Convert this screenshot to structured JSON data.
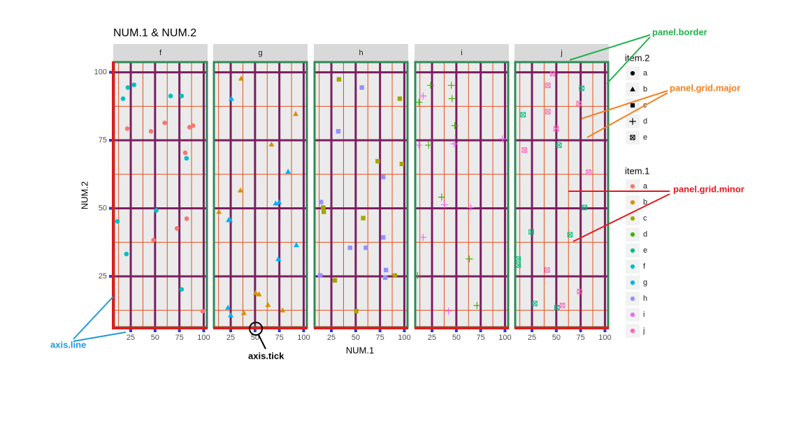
{
  "chart_data": {
    "type": "scatter",
    "title": "NUM.1 & NUM.2",
    "x_label": "NUM.1",
    "y_label": "NUM.2",
    "xlim": [
      7,
      104
    ],
    "ylim": [
      6,
      104
    ],
    "xticks": [
      25,
      50,
      75,
      100
    ],
    "yticks": [
      25,
      50,
      75,
      100
    ],
    "xminor": [
      12.5,
      37.5,
      62.5,
      87.5
    ],
    "yminor": [
      12.5,
      37.5,
      62.5,
      87.5
    ],
    "major_grid_color": "#7b1f5f",
    "minor_grid_color": "#e0501e",
    "border_color": "#2e8b57",
    "axis_line_color": "#e31a1c",
    "axis_tick_color": "#1f3fe0",
    "facets": [
      {
        "name": "f",
        "series": [
          {
            "color": "#F8766D",
            "shape": "circle",
            "x": [
              21.4,
              45.8,
              59.9,
              85.4,
              89,
              81,
              82.5,
              72.5,
              48.4,
              98.9
            ],
            "values": [
              79.3,
              78.3,
              81.4,
              79.8,
              80.4,
              70.4,
              46.2,
              42.6,
              38.3,
              12.2
            ]
          },
          {
            "color": "#00BFC4",
            "shape": "circle",
            "x": [
              17.1,
              22,
              28.4,
              66,
              77.3,
              82.3,
              51.2,
              11.3,
              20.5,
              77.3
            ],
            "values": [
              90.3,
              94.4,
              95.4,
              91.3,
              91.3,
              68.4,
              49.2,
              45.2,
              33.2,
              20.2
            ]
          }
        ]
      },
      {
        "name": "g",
        "series": [
          {
            "color": "#D89000",
            "shape": "triangle",
            "x": [
              35.7,
              91.8,
              66.9,
              35,
              12.9,
              50.6,
              54.1,
              63.3,
              78.3,
              38.5
            ],
            "values": [
              97.7,
              84.7,
              73.5,
              56.6,
              48.7,
              18.9,
              18.4,
              14.5,
              12.5,
              11.5
            ]
          },
          {
            "color": "#00B0F6",
            "shape": "triangle",
            "x": [
              25.7,
              84,
              71.2,
              74.7,
              22.9,
              24.3,
              92.5,
              74,
              22.2,
              25
            ],
            "values": [
              90.3,
              63.5,
              51.8,
              52.3,
              45.7,
              45.7,
              36.5,
              31.4,
              13.5,
              10.7
            ]
          }
        ]
      },
      {
        "name": "h",
        "series": [
          {
            "color": "#A3A500",
            "shape": "square",
            "x": [
              32.8,
              95.3,
              72.6,
              97.4,
              16.5,
              17.2,
              57.7,
              28.6,
              90.3,
              50.6
            ],
            "values": [
              97.4,
              90.3,
              67.3,
              66.3,
              50.3,
              48.7,
              46.4,
              23.5,
              25.3,
              12.2
            ]
          },
          {
            "color": "#9590FF",
            "shape": "square",
            "x": [
              56.3,
              32.1,
              78.3,
              14.3,
              44.2,
              60.5,
              78.3,
              81.1,
              80.4,
              13.6
            ],
            "values": [
              94.4,
              78.3,
              61.5,
              52.3,
              35.5,
              35.5,
              39.3,
              27.3,
              24.5,
              25.3
            ]
          }
        ]
      },
      {
        "name": "i",
        "series": [
          {
            "color": "#39B600",
            "shape": "plus",
            "x": [
              23.6,
              44.9,
              11.5,
              45.6,
              48.4,
              21.4,
              34.9,
              63.3,
              71.2,
              10.1
            ],
            "values": [
              95.2,
              95.2,
              89,
              90.3,
              80.4,
              73.2,
              54.1,
              31.4,
              14.3,
              25.3
            ]
          },
          {
            "color": "#E76BF3",
            "shape": "plus",
            "x": [
              15.8,
              11.5,
              47.7,
              97.4,
              37.8,
              64.8,
              15.8,
              42
            ],
            "values": [
              91.3,
              73.2,
              73.7,
              75.5,
              51.3,
              50.3,
              39.3,
              12.2
            ]
          }
        ]
      },
      {
        "name": "j",
        "series": [
          {
            "color": "#00BF7D",
            "shape": "boxx",
            "x": [
              15.8,
              76.1,
              52.7,
              79,
              24.3,
              64.1,
              10.8,
              10.8,
              27.8,
              50.6
            ],
            "values": [
              84.4,
              94.1,
              73.2,
              50.3,
              41.3,
              40.3,
              31.4,
              29.1,
              15,
              13.5
            ]
          },
          {
            "color": "#FF62BC",
            "shape": "boxx",
            "x": [
              46.3,
              41.3,
              73.3,
              41.3,
              49.9,
              17.2,
              83.2,
              40.6,
              74,
              56.3
            ],
            "values": [
              99.5,
              95.2,
              88.5,
              85.5,
              79.3,
              71.4,
              63.3,
              27.3,
              19.4,
              14.3
            ]
          }
        ]
      }
    ],
    "legends": [
      {
        "title": "item.2",
        "entries": [
          {
            "label": "a",
            "shape": "circle",
            "color": "#000000"
          },
          {
            "label": "b",
            "shape": "triangle",
            "color": "#000000"
          },
          {
            "label": "c",
            "shape": "square",
            "color": "#000000"
          },
          {
            "label": "d",
            "shape": "plus",
            "color": "#000000"
          },
          {
            "label": "e",
            "shape": "boxx",
            "color": "#000000"
          }
        ]
      },
      {
        "title": "item.1",
        "entries": [
          {
            "label": "a",
            "shape": "circle",
            "color": "#F8766D"
          },
          {
            "label": "b",
            "shape": "circle",
            "color": "#D89000"
          },
          {
            "label": "c",
            "shape": "circle",
            "color": "#A3A500"
          },
          {
            "label": "d",
            "shape": "circle",
            "color": "#39B600"
          },
          {
            "label": "e",
            "shape": "circle",
            "color": "#00BF7D"
          },
          {
            "label": "f",
            "shape": "circle",
            "color": "#00BFC4"
          },
          {
            "label": "g",
            "shape": "circle",
            "color": "#00B0F6"
          },
          {
            "label": "h",
            "shape": "circle",
            "color": "#9590FF"
          },
          {
            "label": "i",
            "shape": "circle",
            "color": "#E76BF3"
          },
          {
            "label": "j",
            "shape": "circle",
            "color": "#FF62BC"
          }
        ]
      }
    ],
    "annotations": [
      "panel.border",
      "panel.grid.major",
      "panel.grid.minor",
      "axis.line",
      "axis.tick"
    ]
  }
}
